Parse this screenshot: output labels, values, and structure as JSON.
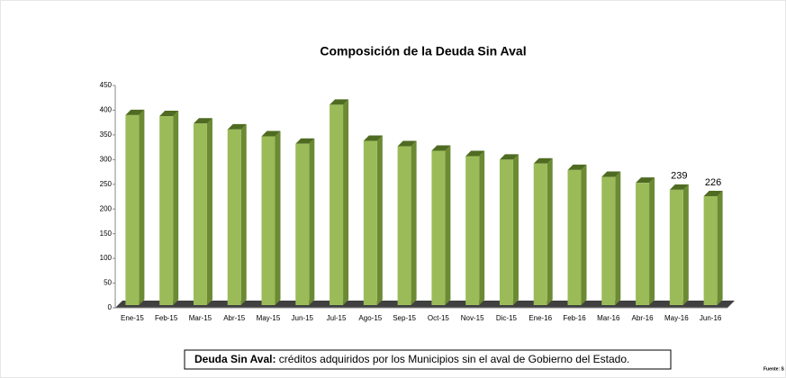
{
  "chart_data": {
    "type": "bar3d",
    "title": "Composición de la Deuda Sin Aval",
    "categories": [
      "Ene-15",
      "Feb-15",
      "Mar-15",
      "Abr-15",
      "May-15",
      "Jun-15",
      "Jul-15",
      "Ago-15",
      "Sep-15",
      "Oct-15",
      "Nov-15",
      "Dic-15",
      "Ene-16",
      "Feb-16",
      "Mar-16",
      "Abr-16",
      "May-16",
      "Jun-16"
    ],
    "values": [
      390,
      388,
      373,
      361,
      347,
      332,
      411,
      338,
      327,
      318,
      307,
      300,
      292,
      279,
      265,
      253,
      239,
      226
    ],
    "value_labels": [
      null,
      null,
      null,
      null,
      null,
      null,
      null,
      null,
      null,
      null,
      null,
      null,
      null,
      null,
      null,
      null,
      "239",
      "226"
    ],
    "color": "#9bbb59",
    "ylim": [
      0,
      450
    ],
    "yticks": [
      0,
      50,
      100,
      150,
      200,
      250,
      300,
      350,
      400,
      450
    ],
    "note": {
      "term": "Deuda Sin Aval:",
      "text": " créditos adquiridos por los Municipios sin el aval de Gobierno del Estado."
    },
    "source": "Fuente: S"
  }
}
